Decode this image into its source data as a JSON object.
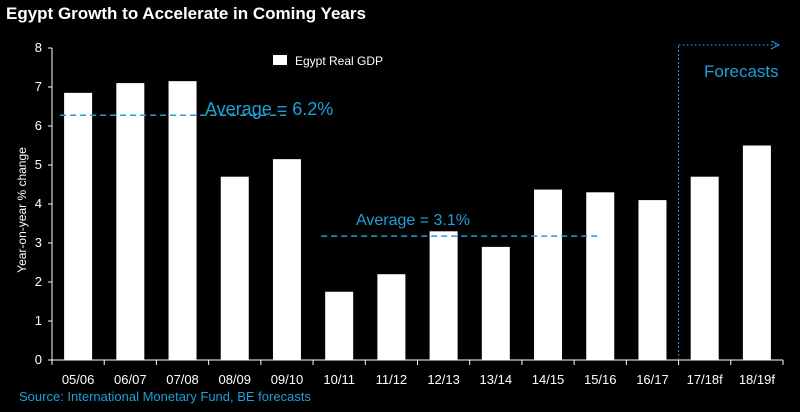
{
  "chart_data": {
    "type": "bar",
    "title": "Egypt Growth to Accelerate in Coming Years",
    "ylabel": "Year-on-year % change",
    "xlabel": "",
    "ylim": [
      0,
      8
    ],
    "yticks": [
      0,
      1,
      2,
      3,
      4,
      5,
      6,
      7,
      8
    ],
    "grid": false,
    "legend_position": "top-center",
    "categories": [
      "05/06",
      "06/07",
      "07/08",
      "08/09",
      "09/10",
      "10/11",
      "11/12",
      "12/13",
      "13/14",
      "14/15",
      "15/16",
      "16/17",
      "17/18f",
      "18/19f"
    ],
    "series": [
      {
        "name": "Egypt Real GDP",
        "color": "#ffffff",
        "values": [
          6.85,
          7.1,
          7.15,
          4.7,
          5.15,
          1.75,
          2.2,
          3.3,
          2.9,
          4.37,
          4.3,
          4.1,
          4.7,
          5.5
        ]
      }
    ],
    "annotations": [
      {
        "text": "Average = 6.2%",
        "value": 6.2,
        "from_category": "05/06",
        "to_category": "09/10",
        "color": "#1e9fd8"
      },
      {
        "text": "Average = 3.1%",
        "value": 3.1,
        "from_category": "10/11",
        "to_category": "15/16",
        "color": "#1e9fd8"
      }
    ],
    "forecast": {
      "label": "Forecasts",
      "start_category": "17/18f",
      "color": "#1e9fd8"
    }
  },
  "source": "Source: International Monetary Fund, BE forecasts"
}
